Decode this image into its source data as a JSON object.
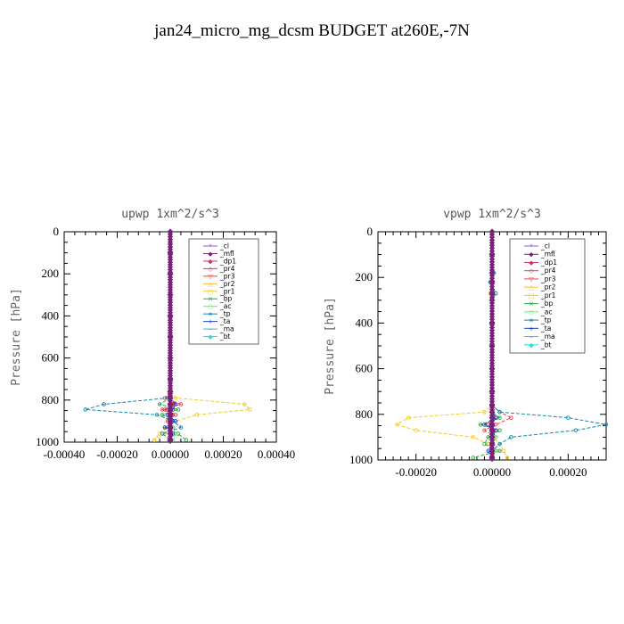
{
  "figure_title": "jan24_micro_mg_dcsm  BUDGET at260E,-7N",
  "chart_data": [
    {
      "type": "line",
      "title": "upwp   1xm^2/s^3",
      "ylabel": "Pressure [hPa]",
      "xlim": [
        -0.0004,
        0.0004
      ],
      "ylim": [
        1000,
        0
      ],
      "xticks": [
        -0.0004,
        -0.0002,
        0,
        0.0002,
        0.0004
      ],
      "xtick_labels": [
        "-0.00040",
        "-0.00020",
        "0.00000",
        "0.00020",
        "0.00040"
      ],
      "yticks": [
        0,
        200,
        400,
        600,
        800,
        1000
      ],
      "ytick_labels": [
        "0",
        "200",
        "400",
        "600",
        "800",
        "1000"
      ],
      "legend_position": "top-right",
      "y": [
        0,
        100,
        200,
        300,
        400,
        500,
        600,
        700,
        760,
        790,
        820,
        845,
        870,
        900,
        930,
        960,
        990
      ],
      "series": [
        {
          "name": "_cl",
          "color": "#9955cc",
          "marker": "*",
          "values": [
            0,
            0,
            0,
            0,
            0,
            0,
            0,
            0,
            0,
            0,
            0,
            0,
            0,
            0,
            0,
            0,
            0
          ]
        },
        {
          "name": "_mfl",
          "color": "#7a1f7a",
          "marker": "◆",
          "values": [
            0,
            0,
            0,
            0,
            0,
            0,
            0,
            0,
            0,
            0,
            0,
            0,
            0,
            0,
            0,
            0,
            0
          ]
        },
        {
          "name": "_dp1",
          "color": "#cc3366",
          "marker": "◆",
          "values": [
            0,
            0,
            0,
            0,
            0,
            0,
            0,
            0,
            0,
            0,
            1.5e-05,
            -2e-05,
            1e-05,
            -1e-05,
            1e-05,
            0,
            0
          ]
        },
        {
          "name": "_pr4",
          "color": "#cc4444",
          "marker": "◇",
          "values": [
            0,
            0,
            0,
            0,
            0,
            0,
            0,
            0,
            0,
            0,
            1e-05,
            -1e-05,
            0,
            0,
            0,
            0,
            0
          ]
        },
        {
          "name": "_pr3",
          "color": "#ee4444",
          "marker": "▽",
          "values": [
            0,
            0,
            0,
            0,
            0,
            0,
            0,
            0,
            0,
            -2e-05,
            4e-05,
            -3e-05,
            2e-05,
            -1e-05,
            0,
            0,
            0
          ]
        },
        {
          "name": "_pr2",
          "color": "#ffbb33",
          "marker": "△",
          "values": [
            0,
            0,
            0,
            0,
            0,
            0,
            0,
            0,
            0,
            0,
            0,
            0,
            0,
            0,
            0,
            -2e-05,
            -6e-05
          ]
        },
        {
          "name": "_pr1",
          "color": "#eecc22",
          "marker": "□",
          "values": [
            0,
            0,
            0,
            0,
            0,
            0,
            0,
            0,
            0,
            2e-05,
            0.00028,
            0.0003,
            0.0001,
            2e-05,
            -2e-05,
            -4e-05,
            -6e-05
          ]
        },
        {
          "name": "_bp",
          "color": "#22aa44",
          "marker": "×",
          "values": [
            0,
            0,
            0,
            0,
            0,
            0,
            0,
            0,
            0,
            0,
            -4e-05,
            3e-05,
            -3e-05,
            2e-05,
            -2e-05,
            3e-05,
            6e-05
          ]
        },
        {
          "name": "_ac",
          "color": "#66ee66",
          "marker": "○",
          "values": [
            0,
            0,
            0,
            0,
            0,
            0,
            0,
            0,
            0,
            0,
            0,
            0,
            0,
            0,
            1e-05,
            2e-05,
            1e-05
          ]
        },
        {
          "name": "_tp",
          "color": "#1188aa",
          "marker": "∗",
          "values": [
            0,
            0,
            0,
            0,
            0,
            0,
            0,
            0,
            0,
            -1e-05,
            -0.00025,
            -0.00032,
            -5e-05,
            1e-05,
            4e-05,
            -3e-05,
            0
          ]
        },
        {
          "name": "_ta",
          "color": "#2244cc",
          "marker": "+",
          "values": [
            0,
            0,
            0,
            0,
            0,
            0,
            0,
            0,
            0,
            0,
            2e-05,
            1e-05,
            -1e-05,
            2e-05,
            -2e-05,
            1e-05,
            0
          ]
        },
        {
          "name": "_ma",
          "color": "#55aadd",
          "marker": "–",
          "values": [
            0,
            0,
            0,
            0,
            0,
            0,
            0,
            0,
            0,
            0,
            0,
            0,
            0,
            0,
            0,
            0,
            0
          ]
        },
        {
          "name": "_bt",
          "color": "#22dddd",
          "marker": "◆",
          "values": [
            0,
            0,
            0,
            0,
            0,
            0,
            0,
            0,
            0,
            0,
            0,
            0,
            0,
            0,
            0,
            0,
            0
          ]
        }
      ]
    },
    {
      "type": "line",
      "title": "vpwp   1xm^2/s^3",
      "ylabel": "Pressure [hPa]",
      "xlim": [
        -0.0003,
        0.0003
      ],
      "ylim": [
        1000,
        0
      ],
      "xticks": [
        -0.0002,
        0,
        0.0002
      ],
      "xtick_labels": [
        "-0.00020",
        "0.00000",
        "0.00020"
      ],
      "yticks": [
        0,
        200,
        400,
        600,
        800,
        1000
      ],
      "ytick_labels": [
        "0",
        "200",
        "400",
        "600",
        "800",
        "1000"
      ],
      "legend_position": "top-right",
      "y": [
        0,
        100,
        180,
        220,
        270,
        300,
        400,
        500,
        600,
        700,
        760,
        790,
        815,
        845,
        870,
        900,
        930,
        960,
        990
      ],
      "series": [
        {
          "name": "_cl",
          "color": "#9955cc",
          "marker": "*",
          "values": [
            0,
            0,
            0,
            0,
            0,
            0,
            0,
            0,
            0,
            0,
            0,
            0,
            0,
            0,
            0,
            0,
            0,
            0,
            0
          ]
        },
        {
          "name": "_mfl",
          "color": "#7a1f7a",
          "marker": "◆",
          "values": [
            0,
            0,
            0,
            0,
            0,
            0,
            0,
            0,
            0,
            0,
            0,
            0,
            0,
            0,
            0,
            0,
            0,
            0,
            0
          ]
        },
        {
          "name": "_dp1",
          "color": "#cc3366",
          "marker": "◆",
          "values": [
            0,
            0,
            0,
            0,
            0,
            0,
            0,
            0,
            0,
            0,
            0,
            0,
            1e-05,
            -1e-05,
            1e-05,
            0,
            0,
            0,
            0
          ]
        },
        {
          "name": "_pr4",
          "color": "#cc4444",
          "marker": "◇",
          "values": [
            0,
            0,
            0,
            0,
            0,
            0,
            0,
            0,
            0,
            0,
            0,
            0,
            1e-05,
            0,
            0,
            0,
            0,
            0,
            0
          ]
        },
        {
          "name": "_pr3",
          "color": "#ee4444",
          "marker": "▽",
          "values": [
            0,
            0,
            0,
            0,
            0,
            0,
            0,
            0,
            0,
            0,
            0,
            2e-05,
            5e-05,
            1e-05,
            -2e-05,
            1e-05,
            0,
            0,
            0
          ]
        },
        {
          "name": "_pr2",
          "color": "#ffbb33",
          "marker": "△",
          "values": [
            0,
            0,
            0,
            0,
            -5e-06,
            0,
            0,
            0,
            0,
            0,
            0,
            0,
            0,
            0,
            0,
            0,
            2e-05,
            3e-05,
            4e-05
          ]
        },
        {
          "name": "_pr1",
          "color": "#eecc22",
          "marker": "□",
          "values": [
            0,
            0,
            0,
            0,
            0,
            0,
            0,
            0,
            0,
            0,
            0,
            -2e-05,
            -0.00022,
            -0.00025,
            -0.0002,
            -5e-05,
            -1e-05,
            1e-05,
            0
          ]
        },
        {
          "name": "_bp",
          "color": "#22aa44",
          "marker": "×",
          "values": [
            0,
            0,
            0,
            0,
            0,
            0,
            0,
            0,
            0,
            0,
            0,
            0,
            2e-05,
            -3e-05,
            2e-05,
            -1e-05,
            -2e-05,
            2e-05,
            -5e-05
          ]
        },
        {
          "name": "_ac",
          "color": "#66ee66",
          "marker": "○",
          "values": [
            0,
            0,
            0,
            0,
            0,
            0,
            0,
            0,
            0,
            0,
            0,
            0,
            0,
            0,
            0,
            1e-05,
            0,
            1e-05,
            0
          ]
        },
        {
          "name": "_tp",
          "color": "#1188aa",
          "marker": "∗",
          "values": [
            0,
            0,
            5e-06,
            -5e-06,
            1e-05,
            0,
            0,
            0,
            0,
            0,
            0,
            2e-05,
            0.0002,
            0.0003,
            0.00022,
            5e-05,
            2e-05,
            0,
            0
          ]
        },
        {
          "name": "_ta",
          "color": "#2244cc",
          "marker": "+",
          "values": [
            0,
            0,
            0,
            0,
            0,
            0,
            0,
            0,
            0,
            0,
            0,
            0,
            1e-05,
            -2e-05,
            1e-05,
            0,
            0,
            -1e-05,
            0
          ]
        },
        {
          "name": "_ma",
          "color": "#55aadd",
          "marker": "–",
          "values": [
            0,
            0,
            0,
            0,
            0,
            0,
            0,
            0,
            0,
            0,
            0,
            0,
            0,
            0,
            0,
            0,
            0,
            0,
            0
          ]
        },
        {
          "name": "_bt",
          "color": "#22dddd",
          "marker": "◆",
          "values": [
            0,
            0,
            0,
            0,
            0,
            0,
            0,
            0,
            0,
            0,
            0,
            0,
            0,
            0,
            0,
            0,
            0,
            0,
            0
          ]
        }
      ]
    }
  ]
}
